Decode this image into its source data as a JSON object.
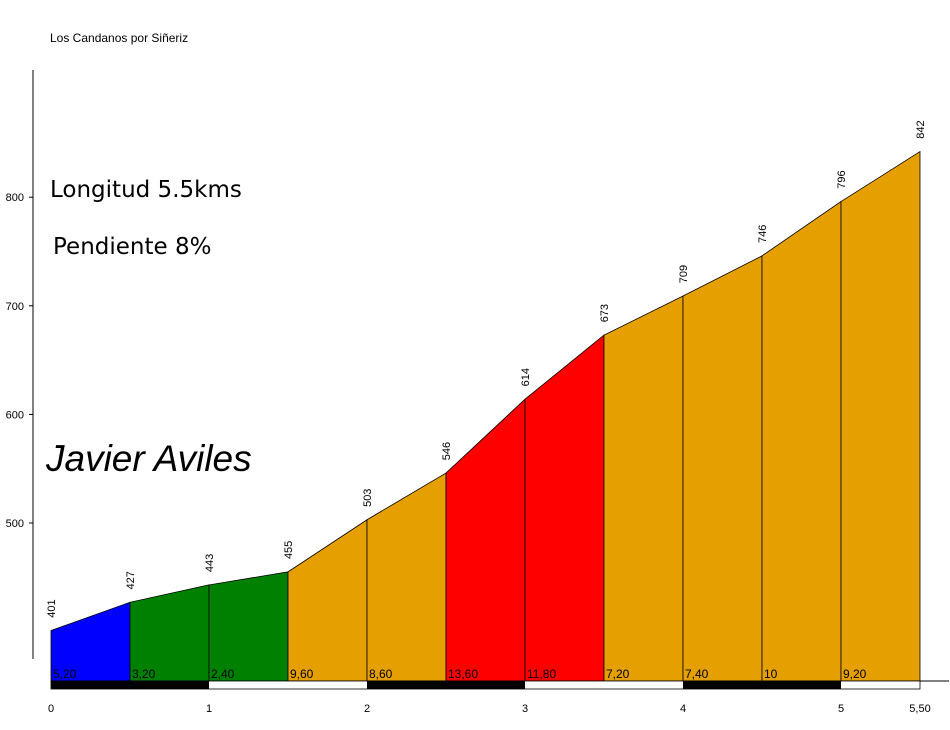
{
  "title": "Los Candanos por Siñeriz",
  "info": {
    "length": "Longitud 5.5kms",
    "gradient": "Pendiente 8%"
  },
  "author": "Javier Aviles",
  "chart_data": {
    "type": "area",
    "title": "Los Candanos por Siñeriz",
    "xlabel": "",
    "ylabel": "",
    "ylim": [
      350,
      900
    ],
    "xlim": [
      0,
      5.5
    ],
    "y_ticks": [
      500,
      600,
      700,
      800
    ],
    "x_ticks": [
      {
        "value": 0,
        "label": "0"
      },
      {
        "value": 1,
        "label": "1"
      },
      {
        "value": 2,
        "label": "2"
      },
      {
        "value": 3,
        "label": "3"
      },
      {
        "value": 4,
        "label": "4"
      },
      {
        "value": 5,
        "label": "5"
      },
      {
        "value": 5.5,
        "label": "5,50"
      }
    ],
    "points": [
      {
        "x": 0,
        "elevation": 401
      },
      {
        "x": 0.5,
        "elevation": 427
      },
      {
        "x": 1.0,
        "elevation": 443
      },
      {
        "x": 1.5,
        "elevation": 455
      },
      {
        "x": 2.0,
        "elevation": 503
      },
      {
        "x": 2.5,
        "elevation": 546
      },
      {
        "x": 3.0,
        "elevation": 614
      },
      {
        "x": 3.5,
        "elevation": 673
      },
      {
        "x": 4.0,
        "elevation": 709
      },
      {
        "x": 4.5,
        "elevation": 746
      },
      {
        "x": 5.0,
        "elevation": 796
      },
      {
        "x": 5.5,
        "elevation": 842
      }
    ],
    "segments": [
      {
        "gradient": "5,20",
        "color": "#0000ff"
      },
      {
        "gradient": "3,20",
        "color": "#008000"
      },
      {
        "gradient": "2,40",
        "color": "#008000"
      },
      {
        "gradient": "9,60",
        "color": "#e5a000"
      },
      {
        "gradient": "8,60",
        "color": "#e5a000"
      },
      {
        "gradient": "13,60",
        "color": "#ff0000"
      },
      {
        "gradient": "11,80",
        "color": "#ff0000"
      },
      {
        "gradient": "7,20",
        "color": "#e5a000"
      },
      {
        "gradient": "7,40",
        "color": "#e5a000"
      },
      {
        "gradient": "10",
        "color": "#e5a000"
      },
      {
        "gradient": "9,20",
        "color": "#e5a000"
      }
    ],
    "grid": false
  }
}
